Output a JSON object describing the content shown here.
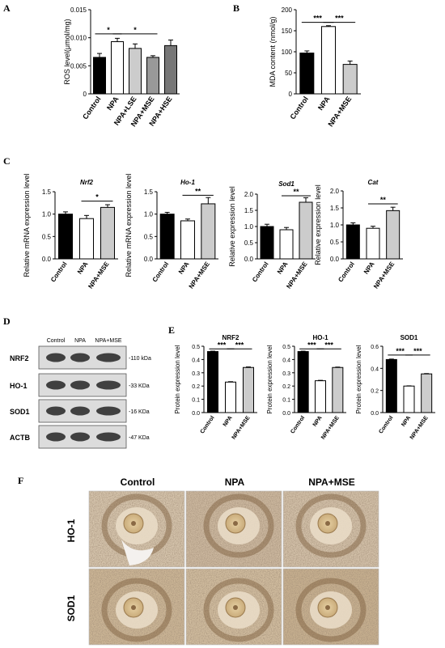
{
  "panels": {
    "A": "A",
    "B": "B",
    "C": "C",
    "D": "D",
    "E": "E",
    "F": "F"
  },
  "chart_data": [
    {
      "id": "A",
      "type": "bar",
      "categories": [
        "Control",
        "NPA",
        "NPA+LSE",
        "NPA+MSE",
        "NPA+HSE"
      ],
      "values": [
        0.0065,
        0.0093,
        0.0081,
        0.0065,
        0.0086
      ],
      "errors": [
        0.0007,
        0.0006,
        0.0008,
        0.0003,
        0.001
      ],
      "fills": [
        "#000000",
        "#ffffff",
        "#cccccc",
        "#999999",
        "#777777"
      ],
      "ylabel": "ROS level(μmol/mg)",
      "ylim": [
        0,
        0.015
      ],
      "ticks": [
        0,
        0.005,
        0.01,
        0.015
      ],
      "tick_labels": [
        "0",
        "0.005",
        "0.010",
        "0.015"
      ],
      "sig": [
        {
          "from": 0,
          "to": 1,
          "label": "*",
          "y": 0.0107
        },
        {
          "from": 1,
          "to": 3,
          "label": "*",
          "y": 0.0107
        }
      ]
    },
    {
      "id": "B",
      "type": "bar",
      "categories": [
        "Control",
        "NPA",
        "NPA+MSE"
      ],
      "values": [
        97,
        160,
        70
      ],
      "errors": [
        5,
        2,
        8
      ],
      "fills": [
        "#000000",
        "#ffffff",
        "#cccccc"
      ],
      "ylabel": "MDA content (nmol/g)",
      "ylim": [
        0,
        200
      ],
      "ticks": [
        0,
        50,
        100,
        150,
        200
      ],
      "tick_labels": [
        "0",
        "50",
        "100",
        "150",
        "200"
      ],
      "sig": [
        {
          "from": 0,
          "to": 1,
          "label": "***",
          "y": 170
        },
        {
          "from": 1,
          "to": 2,
          "label": "***",
          "y": 170
        }
      ]
    },
    {
      "id": "C1",
      "type": "bar",
      "title": "Nrf2",
      "categories": [
        "Control",
        "NPA",
        "NPA+MSE"
      ],
      "values": [
        1.0,
        0.9,
        1.15
      ],
      "errors": [
        0.05,
        0.07,
        0.06
      ],
      "fills": [
        "#000000",
        "#ffffff",
        "#cccccc"
      ],
      "ylabel": "Relative mRNA expression level",
      "ylim": [
        0,
        1.5
      ],
      "ticks": [
        0,
        0.5,
        1.0,
        1.5
      ],
      "tick_labels": [
        "0.0",
        "0.5",
        "1.0",
        "1.5"
      ],
      "sig": [
        {
          "from": 1,
          "to": 2,
          "label": "*",
          "y": 1.29
        }
      ]
    },
    {
      "id": "C2",
      "type": "bar",
      "title": "Ho-1",
      "categories": [
        "Control",
        "NPA",
        "NPA+MSE"
      ],
      "values": [
        1.0,
        0.85,
        1.23
      ],
      "errors": [
        0.04,
        0.04,
        0.14
      ],
      "fills": [
        "#000000",
        "#ffffff",
        "#cccccc"
      ],
      "ylabel": "Relative mRNA expression level",
      "ylim": [
        0,
        1.5
      ],
      "ticks": [
        0,
        0.5,
        1.0,
        1.5
      ],
      "tick_labels": [
        "0.0",
        "0.5",
        "1.0",
        "1.5"
      ],
      "sig": [
        {
          "from": 1,
          "to": 2,
          "label": "**",
          "y": 1.42
        }
      ]
    },
    {
      "id": "C3",
      "type": "bar",
      "title": "Sod1",
      "categories": [
        "Control",
        "NPA",
        "NPA+MSE"
      ],
      "values": [
        1.0,
        0.9,
        1.75
      ],
      "errors": [
        0.07,
        0.07,
        0.14
      ],
      "fills": [
        "#000000",
        "#ffffff",
        "#cccccc"
      ],
      "ylabel": "Relative expression level",
      "ylim": [
        0,
        2.0
      ],
      "ticks": [
        0,
        0.5,
        1.0,
        1.5,
        2.0
      ],
      "tick_labels": [
        "0.0",
        "0.5",
        "1.0",
        "1.5",
        "2.0"
      ],
      "sig": [
        {
          "from": 1,
          "to": 2,
          "label": "**",
          "y": 1.95
        }
      ]
    },
    {
      "id": "C4",
      "type": "bar",
      "title": "Cat",
      "categories": [
        "Control",
        "NPA",
        "NPA+MSE"
      ],
      "values": [
        1.0,
        0.9,
        1.42
      ],
      "errors": [
        0.06,
        0.06,
        0.1
      ],
      "fills": [
        "#000000",
        "#ffffff",
        "#cccccc"
      ],
      "ylabel": "Relative expression level",
      "ylim": [
        0,
        2.0
      ],
      "ticks": [
        0,
        0.5,
        1.0,
        1.5,
        2.0
      ],
      "tick_labels": [
        "0.0",
        "0.5",
        "1.0",
        "1.5",
        "2.0"
      ],
      "sig": [
        {
          "from": 1,
          "to": 2,
          "label": "**",
          "y": 1.62
        }
      ]
    },
    {
      "id": "E1",
      "type": "bar",
      "title": "NRF2",
      "categories": [
        "Control",
        "NPA",
        "NPA+MSE"
      ],
      "values": [
        0.46,
        0.23,
        0.34
      ],
      "errors": [
        0.003,
        0.003,
        0.004
      ],
      "fills": [
        "#000000",
        "#ffffff",
        "#cccccc"
      ],
      "ylabel": "Protein expression level",
      "ylim": [
        0,
        0.5
      ],
      "ticks": [
        0,
        0.1,
        0.2,
        0.3,
        0.4,
        0.5
      ],
      "tick_labels": [
        "0.0",
        "0.1",
        "0.2",
        "0.3",
        "0.4",
        "0.5"
      ],
      "sig": [
        {
          "from": 0,
          "to": 1,
          "label": "***",
          "y": 0.48
        },
        {
          "from": 1,
          "to": 2,
          "label": "***",
          "y": 0.48
        }
      ]
    },
    {
      "id": "E2",
      "type": "bar",
      "title": "HO-1",
      "categories": [
        "Control",
        "NPA",
        "NPA+MSE"
      ],
      "values": [
        0.46,
        0.24,
        0.34
      ],
      "errors": [
        0.003,
        0.003,
        0.003
      ],
      "fills": [
        "#000000",
        "#ffffff",
        "#cccccc"
      ],
      "ylabel": "Protein expression level",
      "ylim": [
        0,
        0.5
      ],
      "ticks": [
        0,
        0.1,
        0.2,
        0.3,
        0.4,
        0.5
      ],
      "tick_labels": [
        "0.0",
        "0.1",
        "0.2",
        "0.3",
        "0.4",
        "0.5"
      ],
      "sig": [
        {
          "from": 0,
          "to": 1,
          "label": "***",
          "y": 0.48
        },
        {
          "from": 1,
          "to": 2,
          "label": "***",
          "y": 0.48
        }
      ]
    },
    {
      "id": "E3",
      "type": "bar",
      "title": "SOD1",
      "categories": [
        "Control",
        "NPA",
        "NPA+MSE"
      ],
      "values": [
        0.48,
        0.24,
        0.35
      ],
      "errors": [
        0.004,
        0.002,
        0.003
      ],
      "fills": [
        "#000000",
        "#ffffff",
        "#cccccc"
      ],
      "ylabel": "Protein expression level",
      "ylim": [
        0,
        0.6
      ],
      "ticks": [
        0,
        0.2,
        0.4,
        0.6
      ],
      "tick_labels": [
        "0.0",
        "0.2",
        "0.4",
        "0.6"
      ],
      "sig": [
        {
          "from": 0,
          "to": 1,
          "label": "***",
          "y": 0.52
        },
        {
          "from": 1,
          "to": 2,
          "label": "***",
          "y": 0.52
        }
      ]
    }
  ],
  "blot": {
    "columns": [
      "Control",
      "NPA",
      "NPA+MSE"
    ],
    "rows": [
      {
        "name": "NRF2",
        "size": "-110 kDa"
      },
      {
        "name": "HO-1",
        "size": "-33 KDa"
      },
      {
        "name": "SOD1",
        "size": "-16 KDa"
      },
      {
        "name": "ACTB",
        "size": "-47 KDa"
      }
    ]
  },
  "histology": {
    "columns": [
      "Control",
      "NPA",
      "NPA+MSE"
    ],
    "rows": [
      "HO-1",
      "SOD1"
    ]
  }
}
